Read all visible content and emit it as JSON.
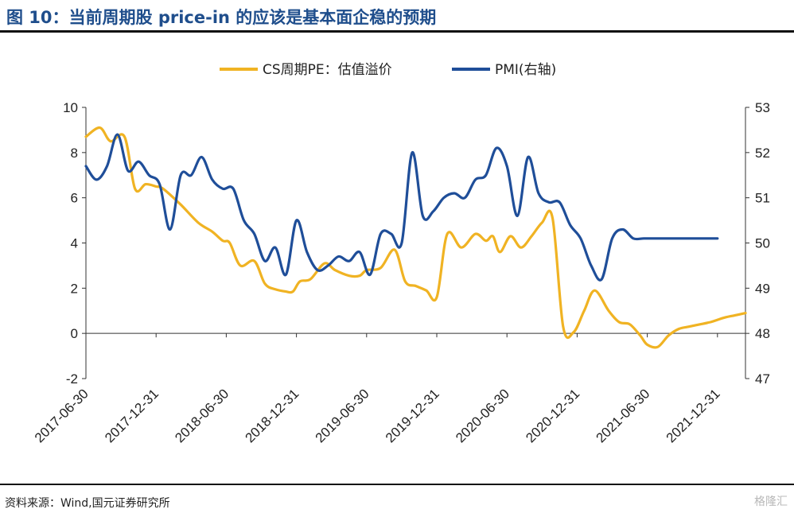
{
  "header": {
    "title": "图 10：当前周期股 price-in 的应该是基本面企稳的预期"
  },
  "footer": {
    "source": "资料来源：Wind,国元证券研究所",
    "watermark": "格隆汇"
  },
  "chart_data": {
    "type": "line",
    "title": "",
    "xlabel": "",
    "ylabel": "",
    "x_ticks": [
      "2017-06-30",
      "2017-12-31",
      "2018-06-30",
      "2018-12-31",
      "2019-06-30",
      "2019-12-31",
      "2020-06-30",
      "2020-12-31",
      "2021-06-30",
      "2021-12-31"
    ],
    "y_left": {
      "range": [
        -2,
        10
      ],
      "ticks": [
        "-2",
        "0",
        "2",
        "4",
        "6",
        "8",
        "10"
      ]
    },
    "y_right": {
      "range": [
        47,
        53
      ],
      "ticks": [
        "47",
        "48",
        "49",
        "50",
        "51",
        "52",
        "53"
      ]
    },
    "legend": {
      "placement": "top"
    },
    "colors": {
      "cs": "#f0b323",
      "pmi": "#1f4e99"
    },
    "series": [
      {
        "name": "CS周期PE：估值溢价",
        "axis": "left",
        "t": [
          0,
          0.2,
          0.35,
          0.55,
          0.7,
          0.85,
          1.0,
          1.1,
          1.35,
          1.6,
          1.8,
          1.95,
          2.05,
          2.2,
          2.4,
          2.55,
          2.7,
          2.85,
          2.95,
          3.05,
          3.2,
          3.4,
          3.55,
          3.75,
          3.9,
          4.0,
          4.2,
          4.4,
          4.55,
          4.7,
          4.85,
          5.0,
          5.15,
          5.35,
          5.55,
          5.7,
          5.8,
          5.9,
          6.05,
          6.2,
          6.35,
          6.5,
          6.65,
          6.8,
          6.95,
          7.1,
          7.25,
          7.45,
          7.6,
          7.75,
          7.9,
          8.0,
          8.15,
          8.3,
          8.45,
          8.6,
          8.75,
          8.9,
          9.0,
          9.1,
          9.25,
          9.4
        ],
        "values": [
          8.7,
          9.1,
          8.5,
          8.7,
          6.4,
          6.6,
          6.5,
          6.4,
          5.7,
          4.9,
          4.5,
          4.1,
          4.0,
          3.0,
          3.2,
          2.2,
          1.95,
          1.85,
          1.85,
          2.3,
          2.4,
          3.1,
          2.8,
          2.55,
          2.55,
          2.8,
          2.9,
          3.7,
          2.3,
          2.1,
          1.9,
          1.6,
          4.4,
          3.8,
          4.4,
          4.1,
          4.3,
          3.6,
          4.3,
          3.8,
          4.3,
          4.9,
          5.1,
          0.3,
          0.05,
          1.0,
          1.9,
          1.0,
          0.5,
          0.4,
          -0.1,
          -0.5,
          -0.6,
          -0.1,
          0.2,
          0.3,
          0.4,
          0.5,
          0.6,
          0.7,
          0.8,
          0.9
        ]
      },
      {
        "name": "PMI(右轴)",
        "axis": "right",
        "t": [
          0,
          0.15,
          0.3,
          0.45,
          0.6,
          0.75,
          0.9,
          1.05,
          1.2,
          1.35,
          1.5,
          1.65,
          1.8,
          1.95,
          2.1,
          2.25,
          2.4,
          2.55,
          2.7,
          2.85,
          3.0,
          3.15,
          3.3,
          3.45,
          3.6,
          3.75,
          3.9,
          4.05,
          4.2,
          4.35,
          4.5,
          4.65,
          4.8,
          4.95,
          5.1,
          5.25,
          5.4,
          5.55,
          5.7,
          5.85,
          6.0,
          6.15,
          6.3,
          6.45,
          6.6,
          6.75,
          6.9,
          7.05,
          7.2,
          7.35,
          7.5,
          7.65,
          7.8,
          7.95,
          8.1,
          8.25,
          8.4,
          8.55,
          8.7,
          8.85,
          9.0
        ],
        "values": [
          51.7,
          51.4,
          51.7,
          52.4,
          51.6,
          51.8,
          51.5,
          51.3,
          50.3,
          51.5,
          51.5,
          51.9,
          51.4,
          51.2,
          51.2,
          50.5,
          50.2,
          49.6,
          49.9,
          49.3,
          50.5,
          49.8,
          49.4,
          49.5,
          49.7,
          49.6,
          49.8,
          49.3,
          50.2,
          50.2,
          50.0,
          52.0,
          50.6,
          50.7,
          51.0,
          51.1,
          51.0,
          51.4,
          51.5,
          52.1,
          51.7,
          50.6,
          51.9,
          51.1,
          50.9,
          50.9,
          50.4,
          50.1,
          49.5,
          49.2,
          50.1,
          50.3,
          50.1,
          50.1,
          50.1,
          50.1,
          50.1,
          50.1,
          50.1,
          50.1,
          50.1
        ]
      }
    ]
  }
}
